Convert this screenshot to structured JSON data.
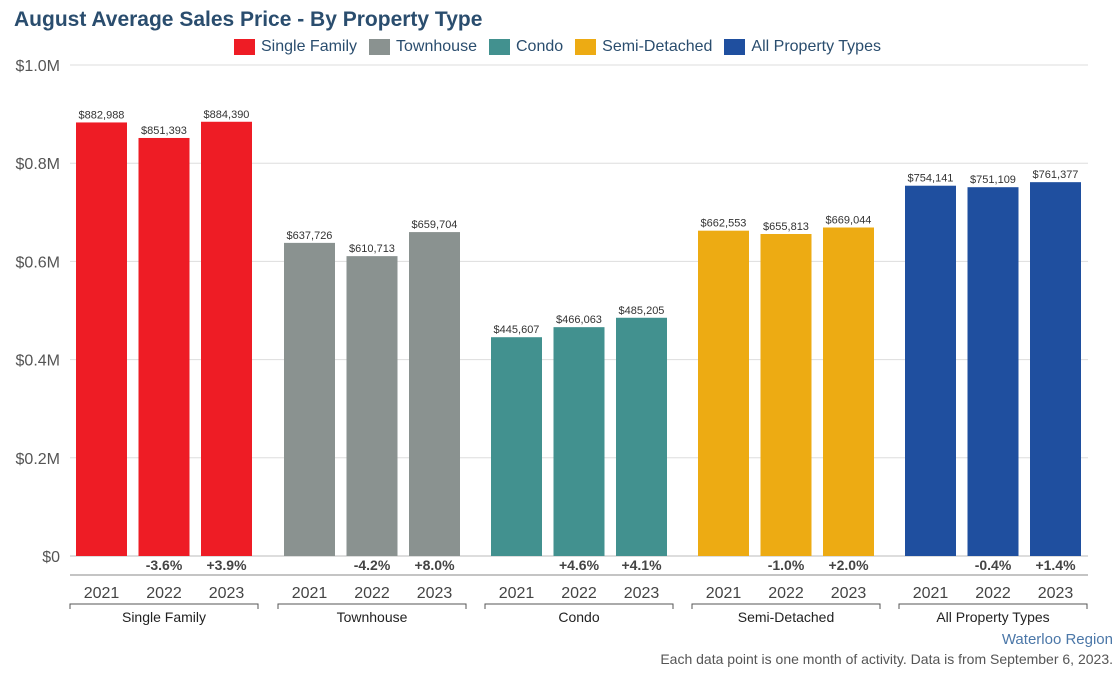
{
  "chart_data": {
    "type": "bar",
    "title": "August Average Sales Price - By Property Type",
    "legend": [
      {
        "label": "Single Family",
        "color": "#ee1c25"
      },
      {
        "label": "Townhouse",
        "color": "#8a9290"
      },
      {
        "label": "Condo",
        "color": "#42918f"
      },
      {
        "label": "Semi-Detached",
        "color": "#edab13"
      },
      {
        "label": "All Property Types",
        "color": "#1f4f9f"
      }
    ],
    "y_ticks": [
      "$0",
      "$0.2M",
      "$0.4M",
      "$0.6M",
      "$0.8M",
      "$1.0M"
    ],
    "ylim": [
      0,
      1000000
    ],
    "groups": [
      {
        "name": "Single Family",
        "color": "#ee1c25",
        "bars": [
          {
            "year": "2021",
            "value": 882988,
            "label": "$882,988",
            "change": ""
          },
          {
            "year": "2022",
            "value": 851393,
            "label": "$851,393",
            "change": "-3.6%"
          },
          {
            "year": "2023",
            "value": 884390,
            "label": "$884,390",
            "change": "+3.9%"
          }
        ]
      },
      {
        "name": "Townhouse",
        "color": "#8a9290",
        "bars": [
          {
            "year": "2021",
            "value": 637726,
            "label": "$637,726",
            "change": ""
          },
          {
            "year": "2022",
            "value": 610713,
            "label": "$610,713",
            "change": "-4.2%"
          },
          {
            "year": "2023",
            "value": 659704,
            "label": "$659,704",
            "change": "+8.0%"
          }
        ]
      },
      {
        "name": "Condo",
        "color": "#42918f",
        "bars": [
          {
            "year": "2021",
            "value": 445607,
            "label": "$445,607",
            "change": ""
          },
          {
            "year": "2022",
            "value": 466063,
            "label": "$466,063",
            "change": "+4.6%"
          },
          {
            "year": "2023",
            "value": 485205,
            "label": "$485,205",
            "change": "+4.1%"
          }
        ]
      },
      {
        "name": "Semi-Detached",
        "color": "#edab13",
        "bars": [
          {
            "year": "2021",
            "value": 662553,
            "label": "$662,553",
            "change": ""
          },
          {
            "year": "2022",
            "value": 655813,
            "label": "$655,813",
            "change": "-1.0%"
          },
          {
            "year": "2023",
            "value": 669044,
            "label": "$669,044",
            "change": "+2.0%"
          }
        ]
      },
      {
        "name": "All Property Types",
        "color": "#1f4f9f",
        "bars": [
          {
            "year": "2021",
            "value": 754141,
            "label": "$754,141",
            "change": ""
          },
          {
            "year": "2022",
            "value": 751109,
            "label": "$751,109",
            "change": "-0.4%"
          },
          {
            "year": "2023",
            "value": 761377,
            "label": "$761,377",
            "change": "+1.4%"
          }
        ]
      }
    ]
  },
  "footer": {
    "region": "Waterloo Region",
    "note": "Each data point is one month of activity. Data is from September 6, 2023."
  }
}
